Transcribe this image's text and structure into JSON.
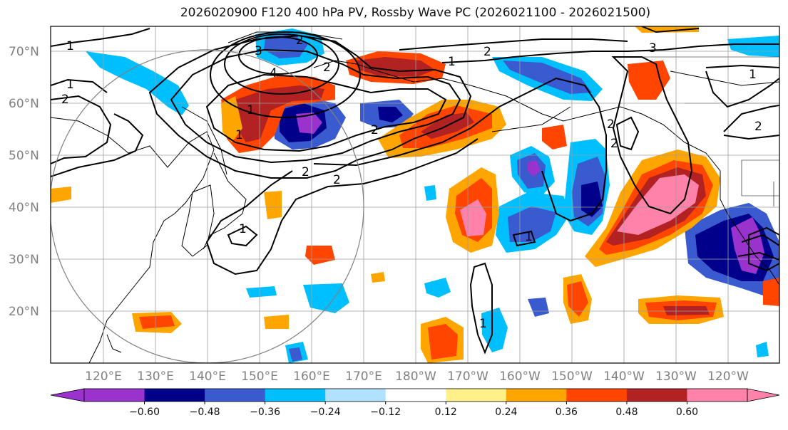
{
  "title": "2026020900 F120 400 hPa PV, Rossby Wave PC (2026021100 - 2026021500)",
  "lat_labels": [
    "70°N",
    "60°N",
    "50°N",
    "40°N",
    "30°N",
    "20°N"
  ],
  "lon_labels": [
    "120°E",
    "130°E",
    "140°E",
    "150°E",
    "160°E",
    "170°E",
    "180°W",
    "170°W",
    "160°W",
    "150°W",
    "140°W",
    "130°W",
    "120°W"
  ],
  "colorbar": {
    "ticks": [
      "−0.60",
      "−0.48",
      "−0.36",
      "−0.24",
      "−0.12",
      "0.12",
      "0.24",
      "0.36",
      "0.48",
      "0.60"
    ],
    "colors": [
      "#9a32cd",
      "#00008b",
      "#3a5bd0",
      "#00bfff",
      "#b0e2ff",
      "#ffffff",
      "#fff08a",
      "#ffa500",
      "#ff4500",
      "#b22222",
      "#ff82ab",
      "#ff82ab"
    ]
  },
  "contour_labels": [
    "1",
    "1",
    "2",
    "3",
    "2",
    "4",
    "2",
    "1",
    "2",
    "2",
    "2",
    "1",
    "1",
    "3",
    "2",
    "1",
    "2",
    "2",
    "1",
    "1",
    "2",
    "1"
  ]
}
